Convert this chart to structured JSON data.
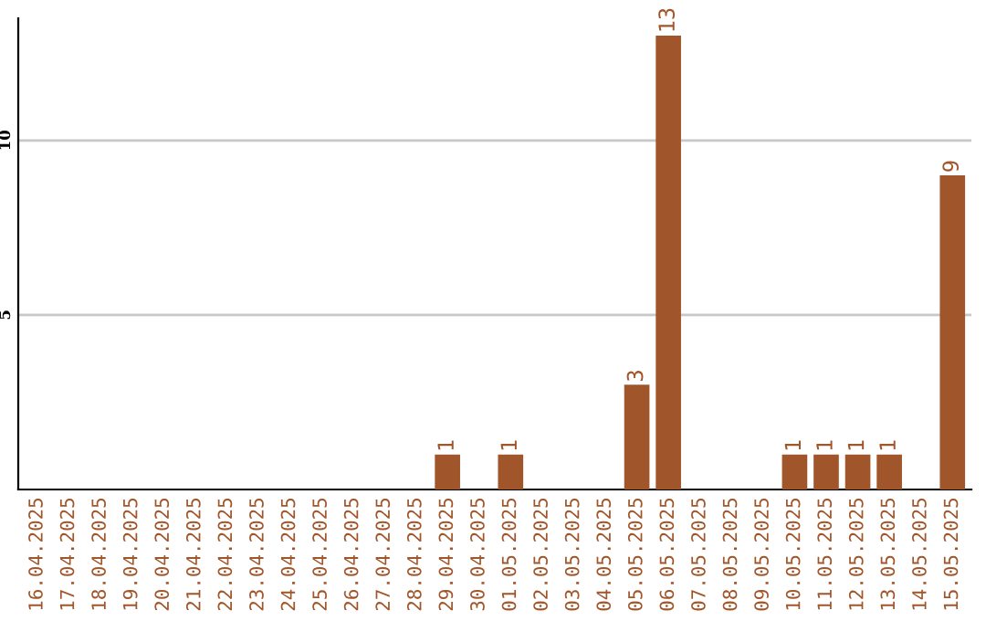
{
  "chart_data": {
    "type": "bar",
    "categories": [
      "16.04.2025",
      "17.04.2025",
      "18.04.2025",
      "19.04.2025",
      "20.04.2025",
      "21.04.2025",
      "22.04.2025",
      "23.04.2025",
      "24.04.2025",
      "25.04.2025",
      "26.04.2025",
      "27.04.2025",
      "28.04.2025",
      "29.04.2025",
      "30.04.2025",
      "01.05.2025",
      "02.05.2025",
      "03.05.2025",
      "04.05.2025",
      "05.05.2025",
      "06.05.2025",
      "07.05.2025",
      "08.05.2025",
      "09.05.2025",
      "10.05.2025",
      "11.05.2025",
      "12.05.2025",
      "13.05.2025",
      "14.05.2025",
      "15.05.2025"
    ],
    "values": [
      0,
      0,
      0,
      0,
      0,
      0,
      0,
      0,
      0,
      0,
      0,
      0,
      0,
      1,
      0,
      1,
      0,
      0,
      0,
      3,
      13,
      0,
      0,
      0,
      1,
      1,
      1,
      1,
      0,
      9
    ],
    "value_labels": [
      null,
      null,
      null,
      null,
      null,
      null,
      null,
      null,
      null,
      null,
      null,
      null,
      null,
      "1",
      null,
      "1",
      null,
      null,
      null,
      "3",
      "13",
      null,
      null,
      null,
      "1",
      "1",
      "1",
      "1",
      null,
      "9"
    ],
    "color": "#a0562a",
    "ylim": [
      0,
      13.5
    ],
    "yticks": [
      5,
      10
    ],
    "grid": "y",
    "legend": false
  }
}
